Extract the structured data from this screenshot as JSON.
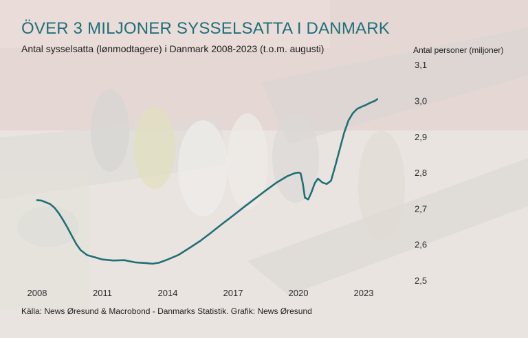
{
  "colors": {
    "line": "#1f6f77",
    "title": "#1f6f77",
    "background": "#e9e4df"
  },
  "chart_data": {
    "type": "line",
    "title": "ÖVER 3 MILJONER SYSSELSATTA I DANMARK",
    "subtitle": "Antal sysselsatta (lønmodtagere) i Danmark 2008-2023 (t.o.m. augusti)",
    "ylabel": "Antal personer (miljoner)",
    "xlabel": "",
    "x_ticks": [
      "2008",
      "2011",
      "2014",
      "2017",
      "2020",
      "2023"
    ],
    "y_ticks": [
      "2,5",
      "2,6",
      "2,7",
      "2,8",
      "2,9",
      "3,0",
      "3,1"
    ],
    "xlim": [
      2008.0,
      2024.0
    ],
    "ylim": [
      2.5,
      3.1
    ],
    "y_axis_position": "right",
    "grid": false,
    "source": "Källa: News Øresund & Macrobond - Danmarks Statistik. Grafik: News Øresund",
    "series": [
      {
        "x": [
          2008.0,
          2008.2,
          2008.4,
          2008.6,
          2008.8,
          2009.0,
          2009.2,
          2009.4,
          2009.6,
          2009.8,
          2010.0,
          2010.3,
          2010.6,
          2011.0,
          2011.5,
          2012.0,
          2012.5,
          2013.0,
          2013.3,
          2013.6,
          2014.0,
          2014.5,
          2015.0,
          2015.5,
          2016.0,
          2016.5,
          2017.0,
          2017.5,
          2018.0,
          2018.5,
          2019.0,
          2019.5,
          2019.83,
          2020.0,
          2020.1,
          2020.2,
          2020.3,
          2020.45,
          2020.6,
          2020.75,
          2020.9,
          2021.1,
          2021.3,
          2021.5,
          2021.7,
          2021.9,
          2022.1,
          2022.3,
          2022.5,
          2022.7,
          2022.9,
          2023.1,
          2023.3,
          2023.5,
          2023.62
        ],
        "y": [
          2.723,
          2.722,
          2.717,
          2.712,
          2.702,
          2.686,
          2.667,
          2.646,
          2.623,
          2.601,
          2.584,
          2.57,
          2.565,
          2.558,
          2.555,
          2.556,
          2.55,
          2.548,
          2.546,
          2.549,
          2.558,
          2.571,
          2.59,
          2.61,
          2.633,
          2.657,
          2.68,
          2.704,
          2.727,
          2.75,
          2.772,
          2.79,
          2.798,
          2.8,
          2.798,
          2.77,
          2.73,
          2.725,
          2.745,
          2.77,
          2.783,
          2.772,
          2.768,
          2.777,
          2.82,
          2.865,
          2.91,
          2.945,
          2.965,
          2.977,
          2.983,
          2.988,
          2.994,
          2.999,
          3.004
        ]
      }
    ]
  }
}
